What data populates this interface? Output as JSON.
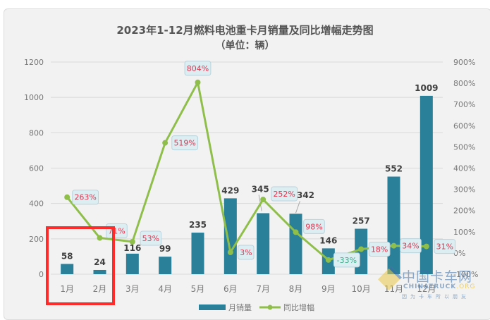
{
  "chart_data": {
    "type": "bar+line",
    "title": "2023年1-12月燃料电池重卡月销量及同比增幅走势图",
    "subtitle": "（单位：辆）",
    "categories": [
      "1月",
      "2月",
      "3月",
      "4月",
      "5月",
      "6月",
      "7月",
      "8月",
      "9月",
      "10月",
      "11月",
      "12月"
    ],
    "series": [
      {
        "name": "月销量",
        "type": "bar",
        "axis": "left",
        "color": "#2a7f99",
        "values": [
          58,
          24,
          116,
          99,
          235,
          429,
          345,
          342,
          146,
          257,
          552,
          1009
        ]
      },
      {
        "name": "同比增幅",
        "type": "line",
        "axis": "right",
        "color": "#8fbf4a",
        "values": [
          263,
          71,
          53,
          519,
          804,
          3,
          252,
          98,
          -33,
          18,
          34,
          31
        ],
        "labels": [
          "263%",
          "71%",
          "53%",
          "519%",
          "804%",
          "3%",
          "252%",
          "98%",
          "-33%",
          "18%",
          "34%",
          "31%"
        ]
      }
    ],
    "left_axis": {
      "ylim": [
        0,
        1200
      ],
      "ticks": [
        "0",
        "200",
        "400",
        "600",
        "800",
        "1000",
        "1200"
      ]
    },
    "right_axis": {
      "ylim": [
        -100,
        900
      ],
      "ticks": [
        "-100%",
        "0%",
        "100%",
        "200%",
        "300%",
        "400%",
        "500%",
        "600%",
        "700%",
        "800%",
        "900%"
      ]
    },
    "legend": {
      "position": "bottom",
      "items": [
        "月销量",
        "同比增幅"
      ]
    },
    "grid": true,
    "annotations": [
      {
        "type": "highlight-box",
        "color": "#ff2a2a",
        "covers": [
          "1月",
          "2月"
        ]
      }
    ]
  },
  "colors": {
    "bar": "#2a7f99",
    "line": "#8fbf4a",
    "pos_label": "#e0364f",
    "neg_label": "#3fae8a",
    "label_box": "#ddeef3"
  },
  "watermark": {
    "cn": "中国卡车网",
    "en_a": "CHINATRUCK",
    "en_b": ".ORG",
    "slogan": "因为卡车所以朋友"
  }
}
